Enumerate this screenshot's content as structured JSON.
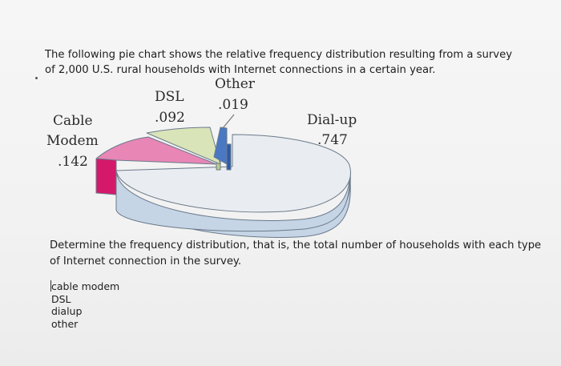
{
  "intro": {
    "line1": "The following pie chart shows the relative frequency distribution resulting from a survey",
    "line2": "of 2,000 U.S. rural households with Internet connections in a certain year."
  },
  "chart_data": {
    "type": "pie",
    "categories": [
      "Dial-up",
      "Cable Modem",
      "DSL",
      "Other"
    ],
    "values": [
      0.747,
      0.142,
      0.092,
      0.019
    ],
    "labels": {
      "dialup": [
        "Dial-up",
        ".747"
      ],
      "cable": [
        "Cable",
        "Modem",
        ".142"
      ],
      "dsl": [
        "DSL",
        ".092"
      ],
      "other": [
        "Other",
        ".019"
      ]
    },
    "colors": {
      "dialup_top": "#e9edf1",
      "dialup_side": "#c5d5e6",
      "cable_top": "#e886b6",
      "cable_side": "#d4196b",
      "dsl_top": "#d9e4b8",
      "dsl_side": "#b9cc86",
      "other_top": "#4a78c2",
      "other_side": "#2d5aa6"
    }
  },
  "question": {
    "line1": "Determine the frequency distribution, that is, the total number of households with each type",
    "line2": "of Internet connection in the survey."
  },
  "answers": [
    "cable modem",
    "DSL",
    "dialup",
    "other"
  ]
}
